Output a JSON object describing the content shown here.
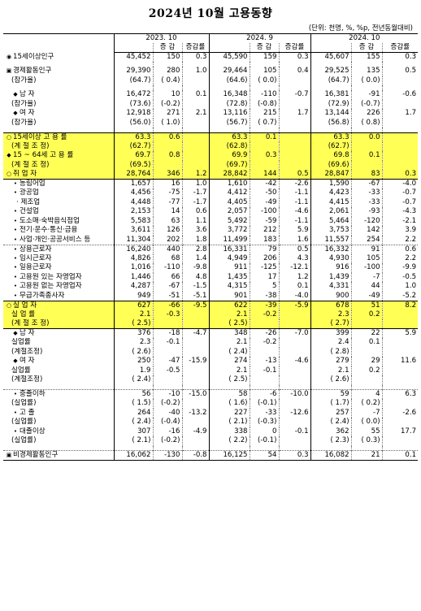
{
  "title": "2024년 10월 고용동향",
  "unit_note": "(단위: 천명, %, %p, 전년동월대비)",
  "periods": [
    "2023. 10",
    "2024. 9",
    "2024. 10"
  ],
  "subheaders": [
    "증 감",
    "증감률"
  ],
  "rows": [
    {
      "label": "15세이상인구",
      "marker": "◉",
      "indent": 0,
      "vals": [
        "45,452",
        "150",
        "0.3",
        "45,590",
        "159",
        "0.3",
        "45,607",
        "155",
        "0.3"
      ],
      "sep": false
    },
    {
      "gap": true
    },
    {
      "label": "경제활동인구",
      "marker": "▣",
      "indent": 0,
      "vals": [
        "29,390",
        "280",
        "1.0",
        "29,464",
        "105",
        "0.4",
        "29,525",
        "135",
        "0.5"
      ]
    },
    {
      "label": "(참가율)",
      "marker": "",
      "indent": 1,
      "vals": [
        "(64.7)",
        "( 0.4)",
        "",
        "(64.6)",
        "( 0.0)",
        "",
        "(64.7)",
        "( 0.0)",
        ""
      ]
    },
    {
      "gap": true
    },
    {
      "label": "남 자",
      "marker": "◆",
      "indent": 1,
      "vals": [
        "16,472",
        "10",
        "0.1",
        "16,348",
        "-110",
        "-0.7",
        "16,381",
        "-91",
        "-0.6"
      ]
    },
    {
      "label": "(참가율)",
      "marker": "",
      "indent": 1,
      "vals": [
        "(73.6)",
        "(-0.2)",
        "",
        "(72.8)",
        "(-0.8)",
        "",
        "(72.9)",
        "(-0.7)",
        ""
      ]
    },
    {
      "label": "여 자",
      "marker": "◆",
      "indent": 1,
      "vals": [
        "12,918",
        "271",
        "2.1",
        "13,116",
        "215",
        "1.7",
        "13,144",
        "226",
        "1.7"
      ]
    },
    {
      "label": "(참가율)",
      "marker": "",
      "indent": 1,
      "vals": [
        "(56.0)",
        "( 1.0)",
        "",
        "(56.7)",
        "( 0.7)",
        "",
        "(56.8)",
        "( 0.8)",
        ""
      ]
    },
    {
      "gap": true
    },
    {
      "label": "15세이상 고 용 률",
      "marker": "○",
      "indent": 0,
      "hl": "first",
      "vals": [
        "63.3",
        "0.6",
        "",
        "63.3",
        "0.1",
        "",
        "63.3",
        "0.0",
        ""
      ]
    },
    {
      "label": "(계 절 조 정)",
      "marker": "",
      "indent": 1,
      "hl": "mid",
      "vals": [
        "(62.7)",
        "",
        "",
        "(62.8)",
        "",
        "",
        "(62.7)",
        "",
        ""
      ]
    },
    {
      "label": "15 ~ 64세 고 용 률",
      "marker": "◆",
      "indent": 0,
      "hl": "mid",
      "vals": [
        "69.7",
        "0.8",
        "",
        "69.9",
        "0.3",
        "",
        "69.8",
        "0.1",
        ""
      ]
    },
    {
      "label": "(계 절 조 정)",
      "marker": "",
      "indent": 1,
      "hl": "mid",
      "vals": [
        "(69.5)",
        "",
        "",
        "(69.7)",
        "",
        "",
        "(69.6)",
        "",
        ""
      ]
    },
    {
      "label": "취 업 자",
      "marker": "○",
      "indent": 0,
      "hl": "last",
      "vals": [
        "28,764",
        "346",
        "1.2",
        "28,842",
        "144",
        "0.5",
        "28,847",
        "83",
        "0.3"
      ]
    },
    {
      "label": "농림어업",
      "marker": "•",
      "indent": 1,
      "vals": [
        "1,657",
        "16",
        "1.0",
        "1,610",
        "-42",
        "-2.6",
        "1,590",
        "-67",
        "-4.0"
      ]
    },
    {
      "label": "광공업",
      "marker": "•",
      "indent": 1,
      "vals": [
        "4,456",
        "-75",
        "-1.7",
        "4,412",
        "-50",
        "-1.1",
        "4,423",
        "-33",
        "-0.7"
      ]
    },
    {
      "label": "· 제조업",
      "marker": "",
      "indent": 2,
      "vals": [
        "4,448",
        "-77",
        "-1.7",
        "4,405",
        "-49",
        "-1.1",
        "4,415",
        "-33",
        "-0.7"
      ]
    },
    {
      "label": "건설업",
      "marker": "•",
      "indent": 1,
      "vals": [
        "2,153",
        "14",
        "0.6",
        "2,057",
        "-100",
        "-4.6",
        "2,061",
        "-93",
        "-4.3"
      ]
    },
    {
      "label": "도소매·숙박음식점업",
      "marker": "•",
      "indent": 1,
      "vals": [
        "5,583",
        "63",
        "1.1",
        "5,492",
        "-59",
        "-1.1",
        "5,464",
        "-120",
        "-2.1"
      ]
    },
    {
      "label": "전기·운수·통신·금융",
      "marker": "•",
      "indent": 1,
      "vals": [
        "3,611",
        "126",
        "3.6",
        "3,772",
        "212",
        "5.9",
        "3,753",
        "142",
        "3.9"
      ]
    },
    {
      "label": "사업·개인·공공서비스 등",
      "marker": "•",
      "indent": 1,
      "vals": [
        "11,304",
        "202",
        "1.8",
        "11,499",
        "183",
        "1.6",
        "11,557",
        "254",
        "2.2"
      ]
    },
    {
      "label": "상용근로자",
      "marker": "•",
      "indent": 1,
      "sep": true,
      "vals": [
        "16,240",
        "440",
        "2.8",
        "16,331",
        "79",
        "0.5",
        "16,332",
        "91",
        "0.6"
      ]
    },
    {
      "label": "임시근로자",
      "marker": "•",
      "indent": 1,
      "vals": [
        "4,826",
        "68",
        "1.4",
        "4,949",
        "206",
        "4.3",
        "4,930",
        "105",
        "2.2"
      ]
    },
    {
      "label": "일용근로자",
      "marker": "•",
      "indent": 1,
      "vals": [
        "1,016",
        "-110",
        "-9.8",
        "911",
        "-125",
        "-12.1",
        "916",
        "-100",
        "-9.9"
      ]
    },
    {
      "label": "고용원 있는 자영업자",
      "marker": "•",
      "indent": 1,
      "vals": [
        "1,446",
        "66",
        "4.8",
        "1,435",
        "17",
        "1.2",
        "1,439",
        "-7",
        "-0.5"
      ]
    },
    {
      "label": "고용원 없는 자영업자",
      "marker": "•",
      "indent": 1,
      "vals": [
        "4,287",
        "-67",
        "-1.5",
        "4,315",
        "5",
        "0.1",
        "4,331",
        "44",
        "1.0"
      ]
    },
    {
      "label": "무급가족종사자",
      "marker": "•",
      "indent": 1,
      "vals": [
        "949",
        "-51",
        "-5.1",
        "901",
        "-38",
        "-4.0",
        "900",
        "-49",
        "-5.2"
      ]
    },
    {
      "label": "실 업 자",
      "marker": "○",
      "indent": 0,
      "hl": "first",
      "vals": [
        "627",
        "-66",
        "-9.5",
        "622",
        "-39",
        "-5.9",
        "678",
        "51",
        "8.2"
      ]
    },
    {
      "label": "실 업 률",
      "marker": "",
      "indent": 1,
      "hl": "mid",
      "vals": [
        "2.1",
        "-0.3",
        "",
        "2.1",
        "-0.2",
        "",
        "2.3",
        "0.2",
        ""
      ]
    },
    {
      "label": "(계 절 조 정)",
      "marker": "",
      "indent": 1,
      "hl": "last",
      "vals": [
        "( 2.5)",
        "",
        "",
        "( 2.5)",
        "",
        "",
        "( 2.7)",
        "",
        ""
      ]
    },
    {
      "label": "남 자",
      "marker": "◆",
      "indent": 1,
      "vals": [
        "376",
        "-18",
        "-4.7",
        "348",
        "-26",
        "-7.0",
        "399",
        "22",
        "5.9"
      ]
    },
    {
      "label": "실업률",
      "marker": "",
      "indent": 1,
      "vals": [
        "2.3",
        "-0.1",
        "",
        "2.1",
        "-0.2",
        "",
        "2.4",
        "0.1",
        ""
      ]
    },
    {
      "label": "(계절조정)",
      "marker": "",
      "indent": 1,
      "vals": [
        "( 2.6)",
        "",
        "",
        "( 2.4)",
        "",
        "",
        "( 2.8)",
        "",
        ""
      ]
    },
    {
      "label": "여 자",
      "marker": "◆",
      "indent": 1,
      "vals": [
        "250",
        "-47",
        "-15.9",
        "274",
        "-13",
        "-4.6",
        "279",
        "29",
        "11.6"
      ]
    },
    {
      "label": "실업률",
      "marker": "",
      "indent": 1,
      "vals": [
        "1.9",
        "-0.5",
        "",
        "2.1",
        "-0.1",
        "",
        "2.1",
        "0.2",
        ""
      ]
    },
    {
      "label": "(계절조정)",
      "marker": "",
      "indent": 1,
      "vals": [
        "( 2.4)",
        "",
        "",
        "( 2.5)",
        "",
        "",
        "( 2.6)",
        "",
        ""
      ]
    },
    {
      "gap": true
    },
    {
      "label": "중졸이하",
      "marker": "•",
      "indent": 1,
      "sep": true,
      "vals": [
        "56",
        "-10",
        "-15.0",
        "58",
        "-6",
        "-10.0",
        "59",
        "4",
        "6.3"
      ]
    },
    {
      "label": "(실업률)",
      "marker": "",
      "indent": 1,
      "vals": [
        "( 1.5)",
        "(-0.2)",
        "",
        "( 1.6)",
        "(-0.1)",
        "",
        "( 1.7)",
        "( 0.2)",
        ""
      ]
    },
    {
      "label": "고 졸",
      "marker": "•",
      "indent": 1,
      "vals": [
        "264",
        "-40",
        "-13.2",
        "227",
        "-33",
        "-12.6",
        "257",
        "-7",
        "-2.6"
      ]
    },
    {
      "label": "(실업률)",
      "marker": "",
      "indent": 1,
      "vals": [
        "( 2.4)",
        "(-0.4)",
        "",
        "( 2.1)",
        "(-0.3)",
        "",
        "( 2.4)",
        "( 0.0)",
        ""
      ]
    },
    {
      "label": "대졸이상",
      "marker": "•",
      "indent": 1,
      "vals": [
        "307",
        "-16",
        "-4.9",
        "338",
        "0",
        "-0.1",
        "362",
        "55",
        "17.7"
      ]
    },
    {
      "label": "(실업률)",
      "marker": "",
      "indent": 1,
      "vals": [
        "( 2.1)",
        "(-0.2)",
        "",
        "( 2.2)",
        "(-0.1)",
        "",
        "( 2.3)",
        "( 0.3)",
        ""
      ]
    },
    {
      "gap": true
    },
    {
      "label": "비경제활동인구",
      "marker": "▣",
      "indent": 0,
      "sep": true,
      "last": true,
      "vals": [
        "16,062",
        "-130",
        "-0.8",
        "16,125",
        "54",
        "0.3",
        "16,082",
        "21",
        "0.1"
      ]
    }
  ]
}
